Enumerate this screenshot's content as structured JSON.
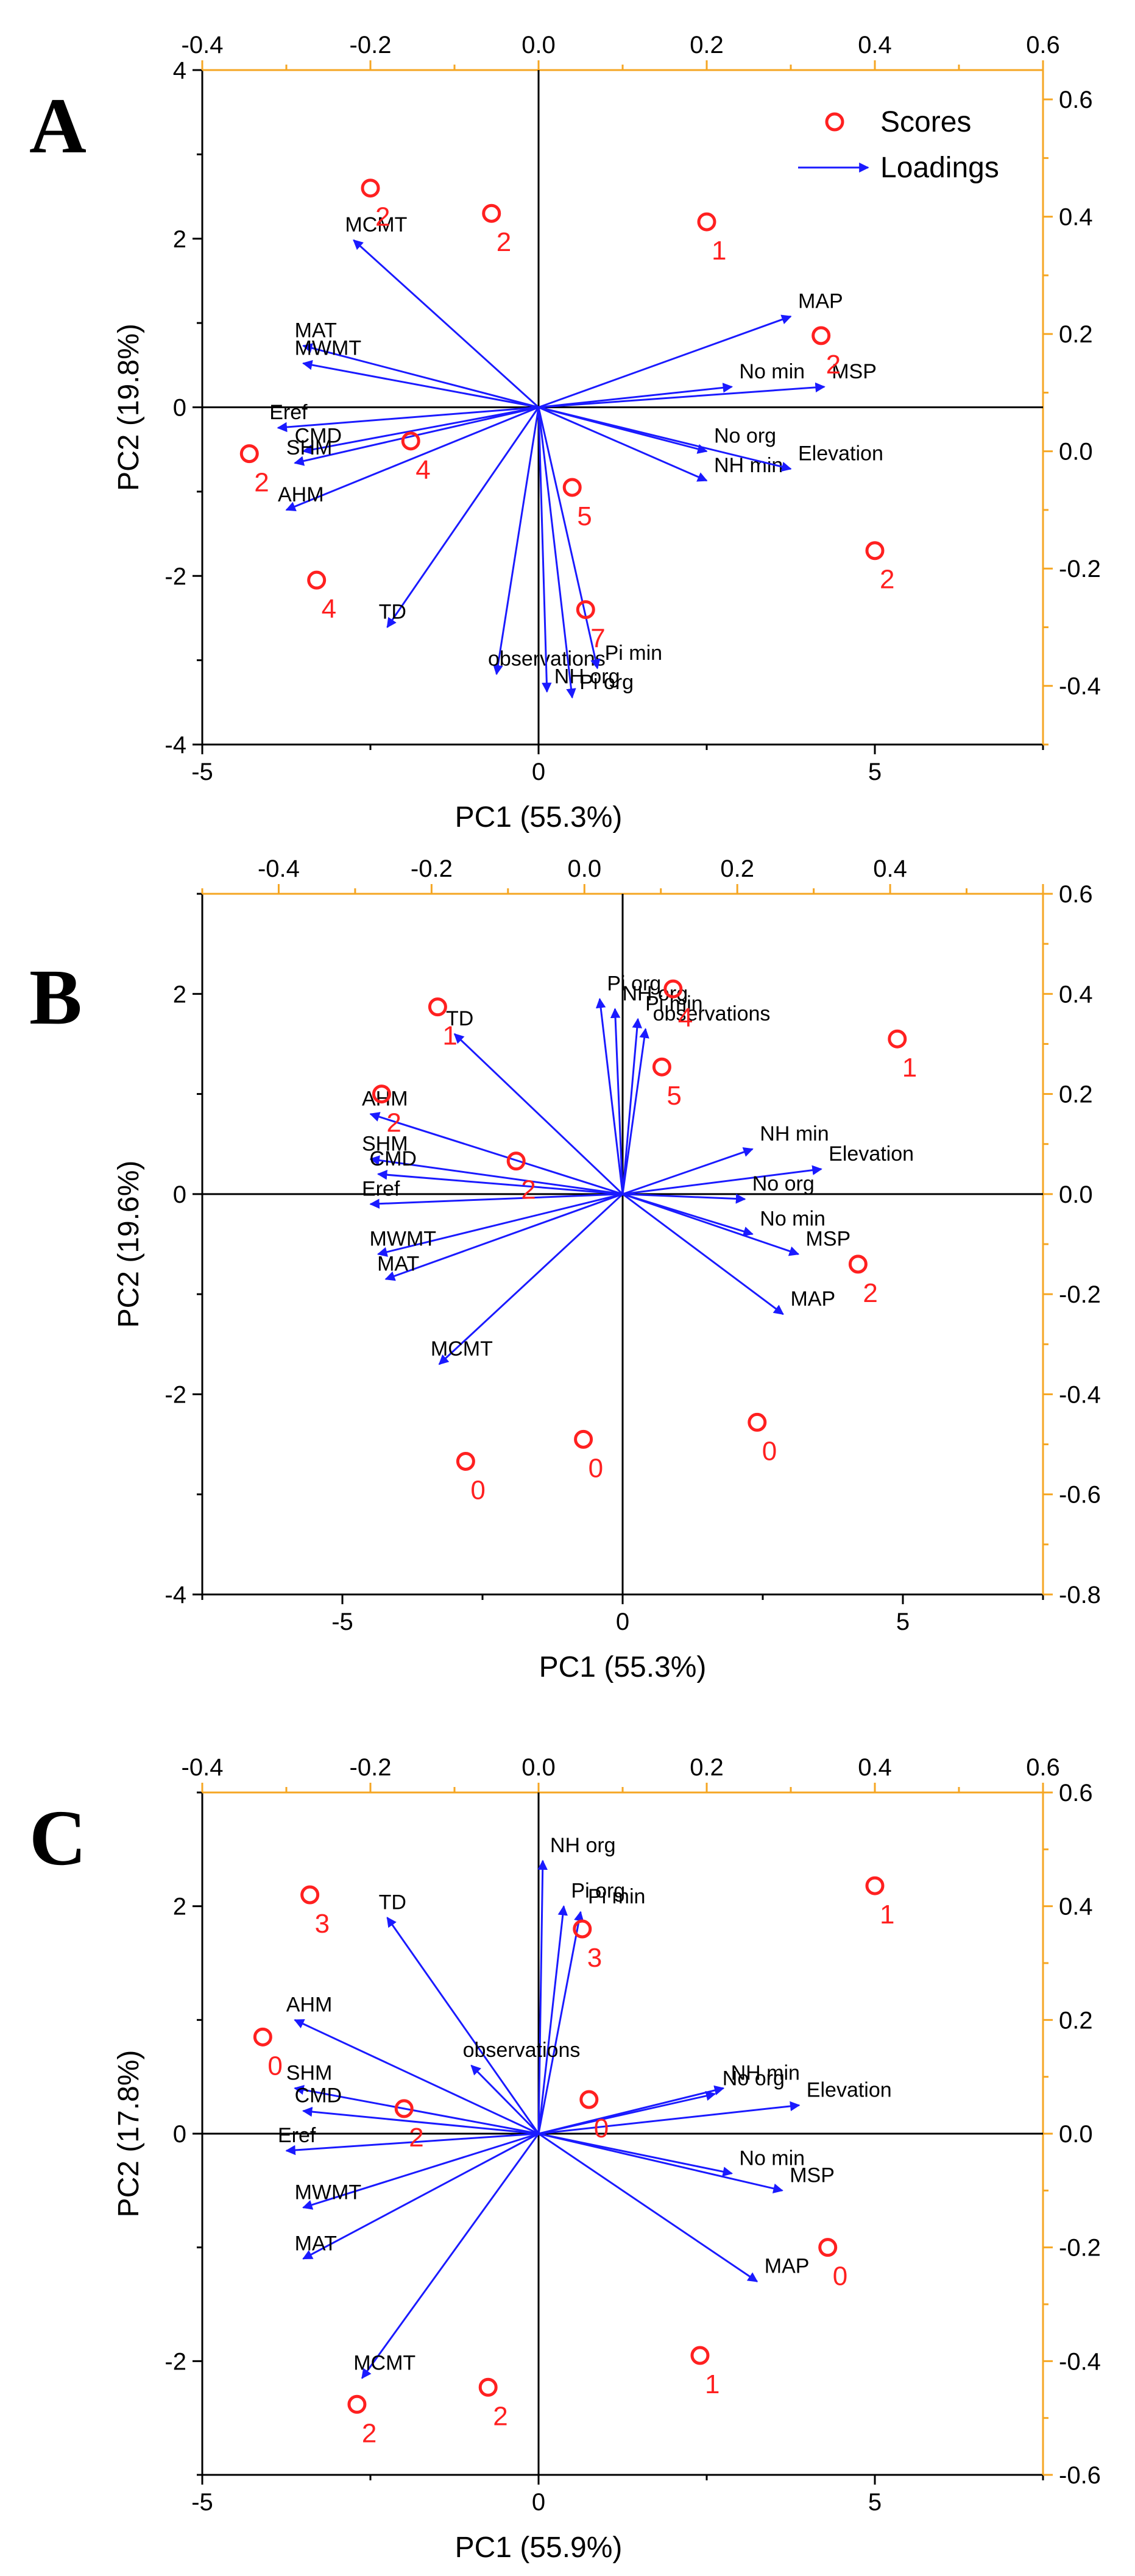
{
  "chart_data": [
    {
      "type": "scatter",
      "panel": "A",
      "xlabel": "PC1 (55.3%)",
      "ylabel": "PC2 (19.8%)",
      "xlim": [
        -5,
        7.5
      ],
      "ylim": [
        -4,
        4
      ],
      "xticks": [
        -5,
        0,
        5
      ],
      "yticks": [
        -4,
        -2,
        0,
        2,
        4
      ],
      "top_xlim": [
        -0.4,
        0.6
      ],
      "top_xticks": [
        -0.4,
        -0.2,
        0.0,
        0.2,
        0.4,
        0.6
      ],
      "right_ylim": [
        -0.5,
        0.65
      ],
      "right_yticks": [
        -0.4,
        -0.2,
        0.0,
        0.2,
        0.4,
        0.6
      ],
      "legend": {
        "position": "top-right",
        "scores_label": "Scores",
        "loadings_label": "Loadings"
      },
      "scores": [
        {
          "x": -2.5,
          "y": 2.6,
          "label": "2"
        },
        {
          "x": -0.7,
          "y": 2.3,
          "label": "2"
        },
        {
          "x": 2.5,
          "y": 2.2,
          "label": "1"
        },
        {
          "x": 4.2,
          "y": 0.85,
          "label": "2"
        },
        {
          "x": -4.3,
          "y": -0.55,
          "label": "2"
        },
        {
          "x": -1.9,
          "y": -0.4,
          "label": "4"
        },
        {
          "x": 0.5,
          "y": -0.95,
          "label": "5"
        },
        {
          "x": 5.0,
          "y": -1.7,
          "label": "2"
        },
        {
          "x": -3.3,
          "y": -2.05,
          "label": "4"
        },
        {
          "x": 0.7,
          "y": -2.4,
          "label": "7"
        }
      ],
      "loadings": [
        {
          "name": "MCMT",
          "x": -0.22,
          "y": 0.36
        },
        {
          "name": "MAT",
          "x": -0.28,
          "y": 0.18
        },
        {
          "name": "MWMT",
          "x": -0.28,
          "y": 0.15
        },
        {
          "name": "Eref",
          "x": -0.31,
          "y": 0.04
        },
        {
          "name": "CMD",
          "x": -0.28,
          "y": 0.0
        },
        {
          "name": "SHM",
          "x": -0.29,
          "y": -0.02
        },
        {
          "name": "AHM",
          "x": -0.3,
          "y": -0.1
        },
        {
          "name": "TD",
          "x": -0.18,
          "y": -0.3
        },
        {
          "name": "observations",
          "x": -0.05,
          "y": -0.38
        },
        {
          "name": "NH org",
          "x": 0.01,
          "y": -0.41
        },
        {
          "name": "Pi org",
          "x": 0.04,
          "y": -0.42
        },
        {
          "name": "Pi min",
          "x": 0.07,
          "y": -0.37
        },
        {
          "name": "MAP",
          "x": 0.3,
          "y": 0.23
        },
        {
          "name": "No min",
          "x": 0.23,
          "y": 0.11
        },
        {
          "name": "MSP",
          "x": 0.34,
          "y": 0.11
        },
        {
          "name": "No org",
          "x": 0.2,
          "y": 0.0
        },
        {
          "name": "NH min",
          "x": 0.2,
          "y": -0.05
        },
        {
          "name": "Elevation",
          "x": 0.3,
          "y": -0.03
        }
      ]
    },
    {
      "type": "scatter",
      "panel": "B",
      "xlabel": "PC1 (55.3%)",
      "ylabel": "PC2 (19.6%)",
      "xlim": [
        -7.5,
        7.5
      ],
      "ylim": [
        -4,
        3
      ],
      "xticks": [
        -5,
        0,
        5
      ],
      "yticks": [
        -4,
        -2,
        0,
        2
      ],
      "top_xlim": [
        -0.5,
        0.6
      ],
      "top_xticks": [
        -0.4,
        -0.2,
        0.0,
        0.2,
        0.4
      ],
      "right_ylim": [
        -0.8,
        0.6
      ],
      "right_yticks": [
        -0.8,
        -0.6,
        -0.4,
        -0.2,
        0.0,
        0.2,
        0.4,
        0.6
      ],
      "scores": [
        {
          "x": -3.3,
          "y": 1.87,
          "label": "1"
        },
        {
          "x": 4.9,
          "y": 1.55,
          "label": "1"
        },
        {
          "x": 0.7,
          "y": 1.27,
          "label": "5"
        },
        {
          "x": 0.9,
          "y": 2.05,
          "label": "4"
        },
        {
          "x": -4.3,
          "y": 1.0,
          "label": "2"
        },
        {
          "x": -1.9,
          "y": 0.33,
          "label": "2"
        },
        {
          "x": 4.2,
          "y": -0.7,
          "label": "2"
        },
        {
          "x": -2.8,
          "y": -2.67,
          "label": "0"
        },
        {
          "x": -0.7,
          "y": -2.45,
          "label": "0"
        },
        {
          "x": 2.4,
          "y": -2.28,
          "label": "0"
        }
      ],
      "loadings": [
        {
          "name": "Pi org",
          "x": 0.02,
          "y": 0.39
        },
        {
          "name": "NH org",
          "x": 0.04,
          "y": 0.37
        },
        {
          "name": "Pi min",
          "x": 0.07,
          "y": 0.35
        },
        {
          "name": "observations",
          "x": 0.08,
          "y": 0.33
        },
        {
          "name": "TD",
          "x": -0.17,
          "y": 0.32
        },
        {
          "name": "AHM",
          "x": -0.28,
          "y": 0.16
        },
        {
          "name": "SHM",
          "x": -0.28,
          "y": 0.07
        },
        {
          "name": "CMD",
          "x": -0.27,
          "y": 0.04
        },
        {
          "name": "Eref",
          "x": -0.28,
          "y": -0.02
        },
        {
          "name": "MWMT",
          "x": -0.27,
          "y": -0.12
        },
        {
          "name": "MAT",
          "x": -0.26,
          "y": -0.17
        },
        {
          "name": "MCMT",
          "x": -0.19,
          "y": -0.34
        },
        {
          "name": "NH min",
          "x": 0.22,
          "y": 0.09
        },
        {
          "name": "Elevation",
          "x": 0.31,
          "y": 0.05
        },
        {
          "name": "No org",
          "x": 0.21,
          "y": -0.01
        },
        {
          "name": "No min",
          "x": 0.22,
          "y": -0.08
        },
        {
          "name": "MSP",
          "x": 0.28,
          "y": -0.12
        },
        {
          "name": "MAP",
          "x": 0.26,
          "y": -0.24
        }
      ]
    },
    {
      "type": "scatter",
      "panel": "C",
      "xlabel": "PC1 (55.9%)",
      "ylabel": "PC2 (17.8%)",
      "xlim": [
        -5,
        7.5
      ],
      "ylim": [
        -3,
        3
      ],
      "xticks": [
        -5,
        0,
        5
      ],
      "yticks": [
        -2,
        0,
        2
      ],
      "top_xlim": [
        -0.4,
        0.6
      ],
      "top_xticks": [
        -0.4,
        -0.2,
        0.0,
        0.2,
        0.4,
        0.6
      ],
      "right_ylim": [
        -0.6,
        0.6
      ],
      "right_yticks": [
        -0.6,
        -0.4,
        -0.2,
        0.0,
        0.2,
        0.4,
        0.6
      ],
      "scores": [
        {
          "x": -3.4,
          "y": 2.1,
          "label": "3"
        },
        {
          "x": 5.0,
          "y": 2.18,
          "label": "1"
        },
        {
          "x": 0.65,
          "y": 1.8,
          "label": "3"
        },
        {
          "x": -4.1,
          "y": 0.85,
          "label": "0"
        },
        {
          "x": -2.0,
          "y": 0.22,
          "label": "2"
        },
        {
          "x": 0.75,
          "y": 0.3,
          "label": "0"
        },
        {
          "x": 4.3,
          "y": -1.0,
          "label": "0"
        },
        {
          "x": 2.4,
          "y": -1.95,
          "label": "1"
        },
        {
          "x": -2.7,
          "y": -2.38,
          "label": "2"
        },
        {
          "x": -0.75,
          "y": -2.23,
          "label": "2"
        }
      ],
      "loadings": [
        {
          "name": "NH org",
          "x": 0.005,
          "y": 0.48
        },
        {
          "name": "Pi org",
          "x": 0.03,
          "y": 0.4
        },
        {
          "name": "Pi min",
          "x": 0.05,
          "y": 0.39
        },
        {
          "name": "TD",
          "x": -0.18,
          "y": 0.38
        },
        {
          "name": "observations",
          "x": -0.08,
          "y": 0.12
        },
        {
          "name": "AHM",
          "x": -0.29,
          "y": 0.2
        },
        {
          "name": "SHM",
          "x": -0.29,
          "y": 0.08
        },
        {
          "name": "CMD",
          "x": -0.28,
          "y": 0.04
        },
        {
          "name": "Eref",
          "x": -0.3,
          "y": -0.03
        },
        {
          "name": "MWMT",
          "x": -0.28,
          "y": -0.13
        },
        {
          "name": "MAT",
          "x": -0.28,
          "y": -0.22
        },
        {
          "name": "MCMT",
          "x": -0.21,
          "y": -0.43
        },
        {
          "name": "NH min",
          "x": 0.22,
          "y": 0.08
        },
        {
          "name": "No org",
          "x": 0.21,
          "y": 0.07
        },
        {
          "name": "Elevation",
          "x": 0.31,
          "y": 0.05
        },
        {
          "name": "No min",
          "x": 0.23,
          "y": -0.07
        },
        {
          "name": "MSP",
          "x": 0.29,
          "y": -0.1
        },
        {
          "name": "MAP",
          "x": 0.26,
          "y": -0.26
        }
      ]
    }
  ]
}
